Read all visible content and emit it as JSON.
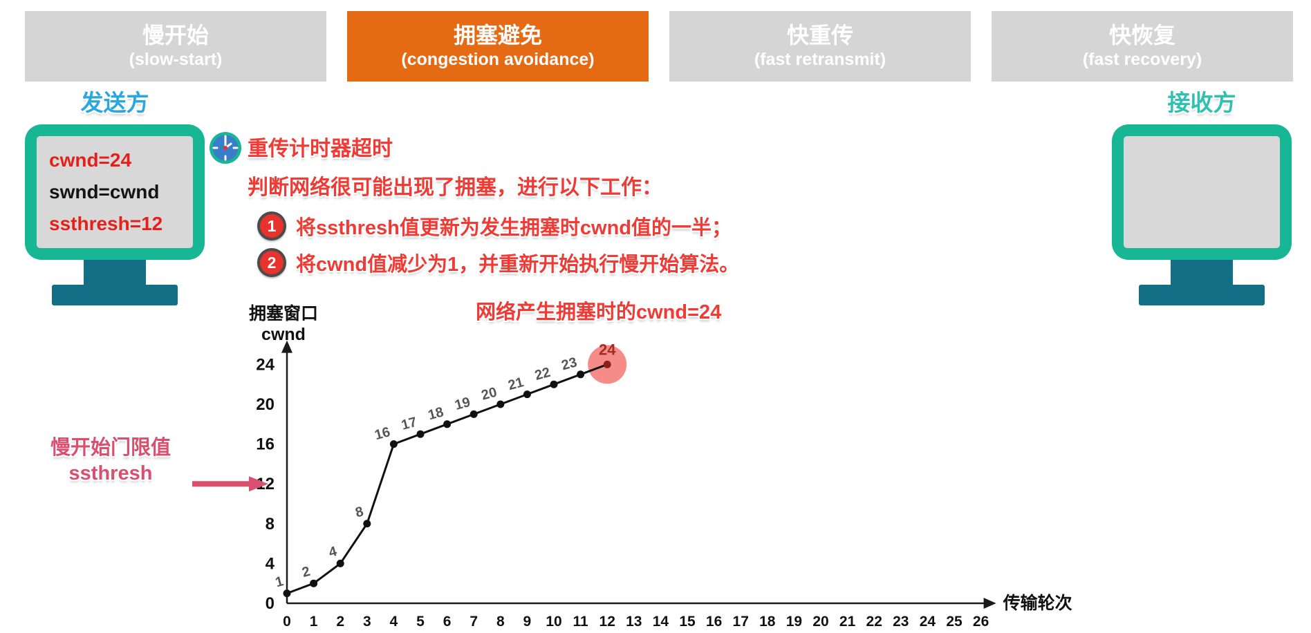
{
  "tabs": [
    {
      "zh": "慢开始",
      "en": "(slow-start)",
      "active": false
    },
    {
      "zh": "拥塞避免",
      "en": "(congestion avoidance)",
      "active": true
    },
    {
      "zh": "快重传",
      "en": "(fast retransmit)",
      "active": false
    },
    {
      "zh": "快恢复",
      "en": "(fast recovery)",
      "active": false
    }
  ],
  "sender": {
    "title": "发送方",
    "lines": [
      {
        "text": "cwnd=24",
        "color": "red"
      },
      {
        "text": "swnd=cwnd",
        "color": "black"
      },
      {
        "text": "ssthresh=12",
        "color": "red"
      }
    ]
  },
  "receiver": {
    "title": "接收方"
  },
  "icons": {
    "timer": "clock-icon"
  },
  "notice": {
    "line1": "重传计时器超时",
    "line2": "判断网络很可能出现了拥塞，进行以下工作：",
    "items": [
      {
        "num": "1",
        "text": "将ssthresh值更新为发生拥塞时cwnd值的一半；"
      },
      {
        "num": "2",
        "text": "将cwnd值减少为1，并重新开始执行慢开始算法。"
      }
    ]
  },
  "ssthresh_note": {
    "line1": "慢开始门限值",
    "line2": "ssthresh"
  },
  "chart_data": {
    "type": "line",
    "x": [
      0,
      1,
      2,
      3,
      4,
      5,
      6,
      7,
      8,
      9,
      10,
      11,
      12
    ],
    "y": [
      1,
      2,
      4,
      8,
      16,
      17,
      18,
      19,
      20,
      21,
      22,
      23,
      24
    ],
    "point_labels": [
      "1",
      "2",
      "4",
      "8",
      "16",
      "17",
      "18",
      "19",
      "20",
      "21",
      "22",
      "23",
      "24"
    ],
    "xlabel": "传输轮次",
    "ylabel_lines": [
      "拥塞窗口",
      "cwnd"
    ],
    "xticks": [
      0,
      1,
      2,
      3,
      4,
      5,
      6,
      7,
      8,
      9,
      10,
      11,
      12,
      13,
      14,
      15,
      16,
      17,
      18,
      19,
      20,
      21,
      22,
      23,
      24,
      25,
      26
    ],
    "yticks": [
      0,
      4,
      8,
      12,
      16,
      20,
      24
    ],
    "xlim": [
      0,
      26
    ],
    "ylim": [
      0,
      26
    ],
    "grid": false,
    "legend": false,
    "annotation": "网络产生拥塞时的cwnd=24",
    "highlight": {
      "x": 12,
      "y": 24,
      "label": "24"
    },
    "ssthresh_arrow_y": 12
  },
  "colors": {
    "tab_active": "#e56a14",
    "tab_inactive": "#d5d5d5",
    "red_text": "#ee3b35",
    "pink": "#d94f70",
    "blue_title": "#2aa7e0",
    "teal_title": "#2fc0b0",
    "monitor_frame": "#17b795",
    "pedestal": "#136f85",
    "line": "#1a1a1a",
    "point_label": "#555555",
    "highlight_fill": "#f5807b",
    "highlight_text": "#a62b25"
  }
}
